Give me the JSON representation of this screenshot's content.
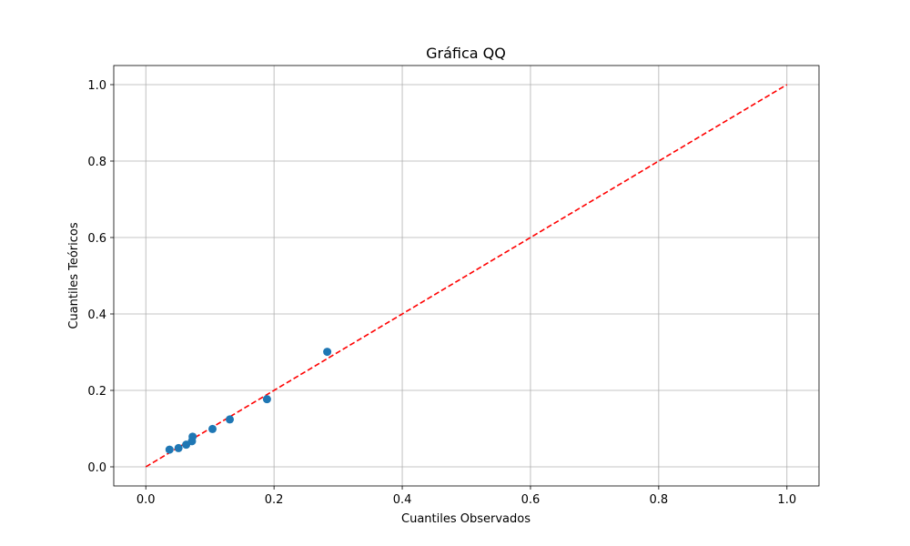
{
  "chart_data": {
    "type": "scatter",
    "title": "Gráfica QQ",
    "xlabel": "Cuantiles Observados",
    "ylabel": "Cuantiles Teóricos",
    "xlim": [
      -0.05,
      1.05
    ],
    "ylim": [
      -0.05,
      1.05
    ],
    "xticks": [
      "0.0",
      "0.2",
      "0.4",
      "0.6",
      "0.8",
      "1.0"
    ],
    "yticks": [
      "0.0",
      "0.2",
      "0.4",
      "0.6",
      "0.8",
      "1.0"
    ],
    "xtick_values": [
      0.0,
      0.2,
      0.4,
      0.6,
      0.8,
      1.0
    ],
    "ytick_values": [
      0.0,
      0.2,
      0.4,
      0.6,
      0.8,
      1.0
    ],
    "grid": true,
    "series": [
      {
        "kind": "points",
        "color": "#1f77b4",
        "x": [
          0.037,
          0.051,
          0.063,
          0.072,
          0.073,
          0.104,
          0.131,
          0.189,
          0.283
        ],
        "y": [
          0.045,
          0.049,
          0.058,
          0.067,
          0.079,
          0.099,
          0.124,
          0.177,
          0.301
        ]
      },
      {
        "kind": "reference-line",
        "color": "#ff0000",
        "style": "dashed",
        "x": [
          0.0,
          1.0
        ],
        "y": [
          0.0,
          1.0
        ]
      }
    ]
  }
}
